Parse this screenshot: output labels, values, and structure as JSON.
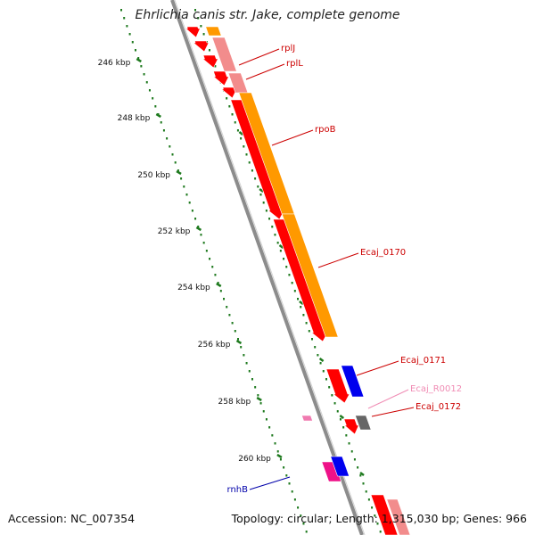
{
  "title": "Ehrlichia canis str. Jake, complete genome",
  "footer": {
    "accession": "Accession: NC_007354",
    "summary": "Topology: circular; Length: 1,315,030 bp; Genes: 966"
  },
  "ruler": {
    "unit": "kbp",
    "ticks": [
      "246 kbp",
      "248 kbp",
      "250 kbp",
      "252 kbp",
      "254 kbp",
      "256 kbp",
      "258 kbp",
      "260 kbp"
    ]
  },
  "colors": {
    "backbone": "#8c8c8c",
    "ruler_green": "#1f7a1f",
    "cds_red": "#ff0000",
    "cds_light_red": "#f28c8c",
    "orange": "#ff9900",
    "blue": "#0000ee",
    "magenta": "#ee1188",
    "gray": "#666666",
    "pink": "#f07ab0",
    "label_red": "#cc0000",
    "label_blue": "#0000aa",
    "label_pink": "#f08cb4"
  },
  "genes": [
    {
      "name": "rplJ",
      "color": "label_red"
    },
    {
      "name": "rplL",
      "color": "label_red"
    },
    {
      "name": "rpoB",
      "color": "label_red"
    },
    {
      "name": "Ecaj_0170",
      "color": "label_red"
    },
    {
      "name": "Ecaj_0171",
      "color": "label_red"
    },
    {
      "name": "Ecaj_R0012",
      "color": "label_pink"
    },
    {
      "name": "Ecaj_0172",
      "color": "label_red"
    },
    {
      "name": "rnhB",
      "color": "label_blue"
    }
  ]
}
